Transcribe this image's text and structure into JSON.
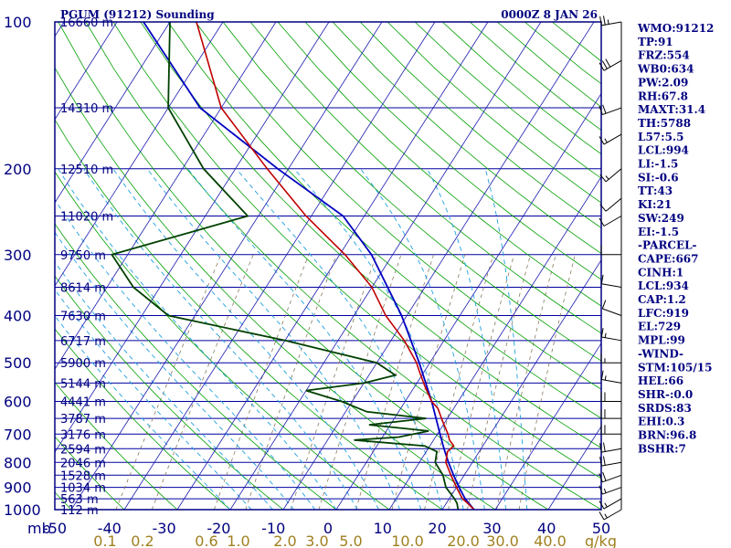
{
  "chart_data": {
    "type": "skew-t sounding",
    "title": "PGUM (91212) Sounding",
    "datetime": "0000Z  8 JAN 26",
    "pressure_unit_label": "mb",
    "mixing_ratio_unit_label": "g/kg",
    "pressure_ticks": [
      100,
      200,
      300,
      400,
      500,
      600,
      700,
      800,
      900,
      1000
    ],
    "pressure_levels_mb": [
      100,
      150,
      200,
      250,
      300,
      350,
      400,
      450,
      500,
      550,
      600,
      650,
      700,
      750,
      800,
      850,
      900,
      950,
      1000
    ],
    "height_labels": [
      {
        "p": 100,
        "label": "16660 m"
      },
      {
        "p": 150,
        "label": "14310 m"
      },
      {
        "p": 200,
        "label": "12510 m"
      },
      {
        "p": 250,
        "label": "11020 m"
      },
      {
        "p": 300,
        "label": "9750 m"
      },
      {
        "p": 350,
        "label": "8614 m"
      },
      {
        "p": 400,
        "label": "7630 m"
      },
      {
        "p": 450,
        "label": "6717 m"
      },
      {
        "p": 500,
        "label": "5900 m"
      },
      {
        "p": 550,
        "label": "5144 m"
      },
      {
        "p": 600,
        "label": "4441 m"
      },
      {
        "p": 650,
        "label": "3787 m"
      },
      {
        "p": 700,
        "label": "3176 m"
      },
      {
        "p": 750,
        "label": "2594 m"
      },
      {
        "p": 800,
        "label": "2046 m"
      },
      {
        "p": 850,
        "label": "1528 m"
      },
      {
        "p": 900,
        "label": "1034 m"
      },
      {
        "p": 950,
        "label": "563 m"
      },
      {
        "p": 1000,
        "label": "112 m"
      }
    ],
    "temperature_ticks_c": [
      "-50",
      "-40",
      "-30",
      "-20",
      "-10",
      "0",
      "10",
      "20",
      "30",
      "40",
      "50"
    ],
    "mixing_ratio_ticks": [
      "0.1",
      "0.2",
      "0.6",
      "1.0",
      "2.0",
      "3.0",
      "5.0",
      "10.0",
      "20.0",
      "30.0",
      "40.0"
    ],
    "temperature_profile": [
      {
        "p": 1000,
        "t": 26
      },
      {
        "p": 970,
        "t": 24
      },
      {
        "p": 950,
        "t": 22.5
      },
      {
        "p": 900,
        "t": 20
      },
      {
        "p": 850,
        "t": 17.5
      },
      {
        "p": 800,
        "t": 15
      },
      {
        "p": 760,
        "t": 14
      },
      {
        "p": 740,
        "t": 14.5
      },
      {
        "p": 720,
        "t": 13
      },
      {
        "p": 700,
        "t": 12
      },
      {
        "p": 660,
        "t": 9.5
      },
      {
        "p": 620,
        "t": 7
      },
      {
        "p": 600,
        "t": 5
      },
      {
        "p": 560,
        "t": 2
      },
      {
        "p": 520,
        "t": -1
      },
      {
        "p": 500,
        "t": -2.5
      },
      {
        "p": 450,
        "t": -7.5
      },
      {
        "p": 400,
        "t": -14
      },
      {
        "p": 350,
        "t": -20
      },
      {
        "p": 300,
        "t": -29
      },
      {
        "p": 250,
        "t": -41
      },
      {
        "p": 200,
        "t": -54
      },
      {
        "p": 150,
        "t": -70
      },
      {
        "p": 100,
        "t": -85
      }
    ],
    "dewpoint_profile": [
      {
        "p": 1000,
        "t": 23
      },
      {
        "p": 970,
        "t": 22
      },
      {
        "p": 950,
        "t": 21
      },
      {
        "p": 900,
        "t": 18
      },
      {
        "p": 850,
        "t": 16
      },
      {
        "p": 800,
        "t": 13
      },
      {
        "p": 760,
        "t": 12
      },
      {
        "p": 740,
        "t": 9
      },
      {
        "p": 720,
        "t": -5
      },
      {
        "p": 710,
        "t": 3
      },
      {
        "p": 690,
        "t": 8
      },
      {
        "p": 670,
        "t": -4
      },
      {
        "p": 650,
        "t": 6
      },
      {
        "p": 630,
        "t": -6
      },
      {
        "p": 600,
        "t": -12
      },
      {
        "p": 570,
        "t": -20
      },
      {
        "p": 550,
        "t": -10
      },
      {
        "p": 530,
        "t": -5
      },
      {
        "p": 500,
        "t": -10
      },
      {
        "p": 450,
        "t": -30
      },
      {
        "p": 400,
        "t": -55
      },
      {
        "p": 350,
        "t": -65
      },
      {
        "p": 300,
        "t": -73
      },
      {
        "p": 250,
        "t": -52
      },
      {
        "p": 200,
        "t": -66
      },
      {
        "p": 150,
        "t": -80
      },
      {
        "p": 100,
        "t": -90
      }
    ],
    "parcel_profile": [
      {
        "p": 1000,
        "t": 26
      },
      {
        "p": 950,
        "t": 23
      },
      {
        "p": 900,
        "t": 20.5
      },
      {
        "p": 850,
        "t": 18
      },
      {
        "p": 800,
        "t": 15.5
      },
      {
        "p": 750,
        "t": 13
      },
      {
        "p": 700,
        "t": 10.5
      },
      {
        "p": 600,
        "t": 5
      },
      {
        "p": 500,
        "t": -2
      },
      {
        "p": 400,
        "t": -11
      },
      {
        "p": 300,
        "t": -24
      },
      {
        "p": 250,
        "t": -34
      },
      {
        "p": 200,
        "t": -52
      },
      {
        "p": 150,
        "t": -74
      },
      {
        "p": 100,
        "t": -95
      }
    ],
    "wind_barbs": [
      {
        "p": 100,
        "dir": 80,
        "kt": 25
      },
      {
        "p": 120,
        "dir": 60,
        "kt": 30
      },
      {
        "p": 150,
        "dir": 70,
        "kt": 20
      },
      {
        "p": 170,
        "dir": 60,
        "kt": 15
      },
      {
        "p": 200,
        "dir": 50,
        "kt": 15
      },
      {
        "p": 230,
        "dir": 50,
        "kt": 10
      },
      {
        "p": 250,
        "dir": 60,
        "kt": 10
      },
      {
        "p": 300,
        "dir": 90,
        "kt": 10
      },
      {
        "p": 350,
        "dir": 100,
        "kt": 10
      },
      {
        "p": 400,
        "dir": 110,
        "kt": 10
      },
      {
        "p": 450,
        "dir": 100,
        "kt": 15
      },
      {
        "p": 500,
        "dir": 90,
        "kt": 15
      },
      {
        "p": 550,
        "dir": 100,
        "kt": 15
      },
      {
        "p": 600,
        "dir": 90,
        "kt": 20
      },
      {
        "p": 650,
        "dir": 90,
        "kt": 20
      },
      {
        "p": 700,
        "dir": 90,
        "kt": 20
      },
      {
        "p": 750,
        "dir": 80,
        "kt": 20
      },
      {
        "p": 800,
        "dir": 80,
        "kt": 20
      },
      {
        "p": 850,
        "dir": 70,
        "kt": 20
      },
      {
        "p": 900,
        "dir": 70,
        "kt": 15
      },
      {
        "p": 950,
        "dir": 60,
        "kt": 15
      },
      {
        "p": 1000,
        "dir": 60,
        "kt": 15
      }
    ],
    "colors": {
      "isobar": "#0000a0",
      "isotherm": "#1a1ab0",
      "dry_adiabat": "#00a000",
      "moist_adiabat": "#20a0e0",
      "mixing_ratio": "#8a7a60",
      "temperature": "#c00000",
      "dewpoint": "#004000",
      "parcel": "#0000c0",
      "text": "#000080",
      "mixing_label": "#a08020"
    }
  },
  "indices": [
    "WMO:91212",
    "TP:91",
    "FRZ:554",
    "WB0:634",
    "PW:2.09",
    "RH:67.8",
    "MAXT:31.4",
    "TH:5788",
    "L57:5.5",
    "LCL:994",
    "LI:-1.5",
    "SI:-0.6",
    "TT:43",
    "KI:21",
    "SW:249",
    "EI:-1.5",
    "-PARCEL-",
    "CAPE:667",
    "CINH:1",
    "LCL:934",
    "CAP:1.2",
    "LFC:919",
    "EL:729",
    "MPL:99",
    "-WIND-",
    "STM:105/15",
    "HEL:66",
    "SHR-:0.0",
    "SRDS:83",
    "EHI:0.3",
    "BRN:96.8",
    "BSHR:7"
  ]
}
